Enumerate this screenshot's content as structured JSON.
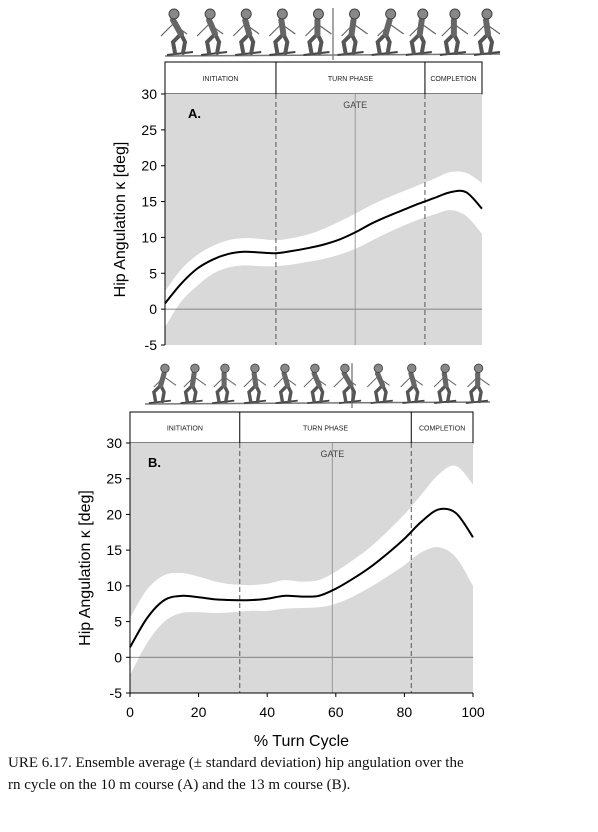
{
  "chart_data": [
    {
      "type": "line",
      "panel_label": "A.",
      "phases": [
        "INITIATION",
        "TURN PHASE",
        "COMPLETION"
      ],
      "phase_boundaries": [
        35,
        82
      ],
      "gate_label": "GATE",
      "gate_x": 60,
      "ylabel": "Hip Angulation κ [deg]",
      "xlabel": "",
      "ylim": [
        -5,
        30
      ],
      "xlim": [
        0,
        100
      ],
      "yticks": [
        -5,
        0,
        5,
        10,
        15,
        20,
        25,
        30
      ],
      "x": [
        0,
        5,
        10,
        15,
        20,
        25,
        30,
        35,
        40,
        45,
        50,
        55,
        60,
        65,
        70,
        75,
        80,
        85,
        90,
        95,
        100
      ],
      "series": [
        {
          "mean": [
            0.8,
            3.5,
            5.6,
            6.9,
            7.7,
            8.0,
            7.9,
            7.8,
            8.1,
            8.5,
            9.0,
            9.7,
            10.7,
            11.9,
            12.9,
            13.8,
            14.7,
            15.5,
            16.3,
            16.3,
            14.0
          ],
          "upper": [
            2.5,
            5.5,
            7.5,
            8.8,
            9.6,
            9.9,
            9.8,
            9.6,
            9.9,
            10.4,
            11.2,
            12.2,
            13.3,
            14.5,
            15.5,
            16.4,
            17.3,
            18.2,
            19.1,
            19.0,
            17.6
          ],
          "lower": [
            -2.5,
            1.0,
            3.2,
            4.9,
            5.8,
            6.1,
            6.0,
            6.0,
            6.2,
            6.6,
            7.0,
            7.6,
            8.4,
            9.5,
            10.6,
            11.6,
            12.5,
            13.2,
            13.8,
            13.0,
            10.5
          ]
        }
      ]
    },
    {
      "type": "line",
      "panel_label": "B.",
      "phases": [
        "INITIATION",
        "TURN PHASE",
        "COMPLETION"
      ],
      "phase_boundaries": [
        32,
        82
      ],
      "gate_label": "GATE",
      "gate_x": 59,
      "ylabel": "Hip Angulation κ [deg]",
      "xlabel": "% Turn Cycle",
      "ylim": [
        -5,
        30
      ],
      "xlim": [
        0,
        100
      ],
      "xticks": [
        0,
        20,
        40,
        60,
        80,
        100
      ],
      "yticks": [
        -5,
        0,
        5,
        10,
        15,
        20,
        25,
        30
      ],
      "x": [
        0,
        5,
        10,
        15,
        20,
        25,
        30,
        35,
        40,
        45,
        50,
        55,
        60,
        65,
        70,
        75,
        80,
        85,
        90,
        95,
        100
      ],
      "series": [
        {
          "mean": [
            1.4,
            5.5,
            8.0,
            8.6,
            8.4,
            8.1,
            8.0,
            8.0,
            8.2,
            8.6,
            8.5,
            8.6,
            9.6,
            11.0,
            12.6,
            14.5,
            16.6,
            19.0,
            20.7,
            20.2,
            16.8
          ],
          "upper": [
            5.5,
            9.5,
            11.5,
            11.8,
            11.3,
            10.6,
            10.2,
            10.1,
            10.3,
            10.8,
            10.6,
            10.8,
            12.0,
            13.6,
            15.4,
            17.6,
            20.0,
            22.8,
            25.6,
            26.8,
            24.2
          ],
          "lower": [
            -2.5,
            2.0,
            5.0,
            6.2,
            6.3,
            6.2,
            6.3,
            6.5,
            6.5,
            6.8,
            6.9,
            7.0,
            7.5,
            8.5,
            9.8,
            11.3,
            12.9,
            14.7,
            15.4,
            14.0,
            10.0
          ]
        }
      ]
    }
  ],
  "caption": {
    "line1": "URE 6.17.  Ensemble average (± standard deviation) hip angulation over the",
    "line2": "rn cycle on the 10 m course (A) and the 13 m course (B)."
  },
  "colors": {
    "sd_band": "#ffffff",
    "background": "#d9d9d9",
    "mean_line": "#000000",
    "phase_dash": "#555555",
    "gate_line": "#9a9a9a"
  },
  "icons": [
    "skier-sequence-top",
    "skier-sequence-bottom"
  ]
}
